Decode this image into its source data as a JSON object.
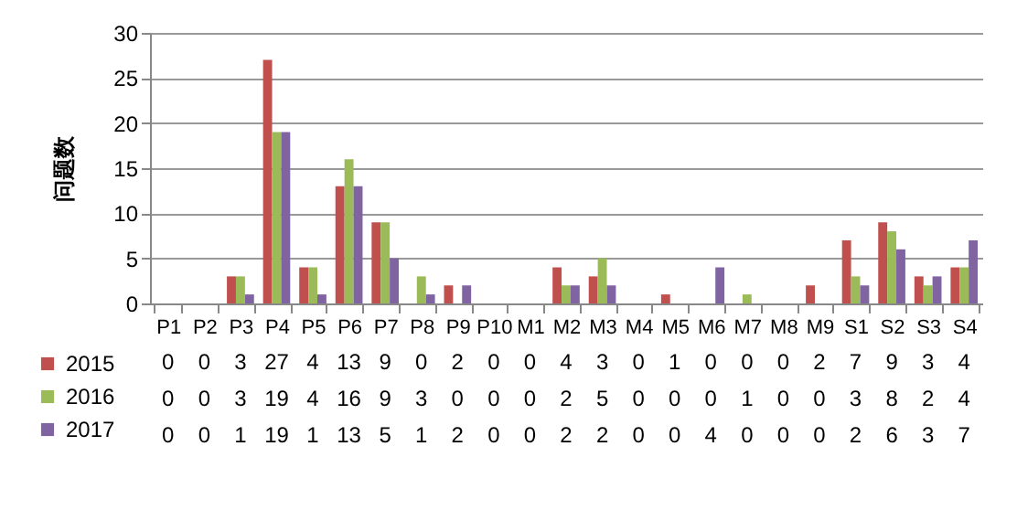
{
  "chart_data": {
    "type": "bar",
    "ylabel": "问题数",
    "categories": [
      "P1",
      "P2",
      "P3",
      "P4",
      "P5",
      "P6",
      "P7",
      "P8",
      "P9",
      "P10",
      "M1",
      "M2",
      "M3",
      "M4",
      "M5",
      "M6",
      "M7",
      "M8",
      "M9",
      "S1",
      "S2",
      "S3",
      "S4"
    ],
    "series": [
      {
        "name": "2015",
        "color": "#c0504d",
        "values": [
          0,
          0,
          3,
          27,
          4,
          13,
          9,
          0,
          2,
          0,
          0,
          4,
          3,
          0,
          1,
          0,
          0,
          0,
          2,
          7,
          9,
          3,
          4
        ]
      },
      {
        "name": "2016",
        "color": "#9bbb59",
        "values": [
          0,
          0,
          3,
          19,
          4,
          16,
          9,
          3,
          0,
          0,
          0,
          2,
          5,
          0,
          0,
          0,
          1,
          0,
          0,
          3,
          8,
          2,
          4
        ]
      },
      {
        "name": "2017",
        "color": "#8064a2",
        "values": [
          0,
          0,
          1,
          19,
          1,
          13,
          5,
          1,
          2,
          0,
          0,
          2,
          2,
          0,
          0,
          4,
          0,
          0,
          0,
          2,
          6,
          3,
          7
        ]
      }
    ],
    "ylim": [
      0,
      30
    ],
    "yticks": [
      0,
      5,
      10,
      15,
      20,
      25,
      30
    ],
    "grid": "y",
    "legend": "bottom left",
    "data_labels": true
  }
}
